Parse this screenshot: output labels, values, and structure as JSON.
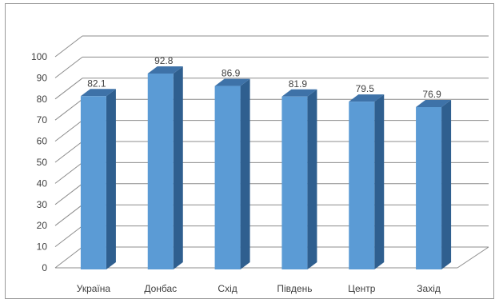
{
  "chart_data": {
    "type": "bar",
    "style": "3d-column",
    "title": "",
    "xlabel": "",
    "ylabel": "",
    "categories": [
      "Україна",
      "Донбас",
      "Схід",
      "Південь",
      "Центр",
      "Захід"
    ],
    "values": [
      82.1,
      92.8,
      86.9,
      81.9,
      79.5,
      76.9
    ],
    "data_labels": [
      "82.1",
      "92.8",
      "86.9",
      "81.9",
      "79.5",
      "76.9"
    ],
    "ylim": [
      0,
      100
    ],
    "yticks": [
      "0",
      "10",
      "20",
      "30",
      "40",
      "50",
      "60",
      "70",
      "80",
      "90",
      "100"
    ],
    "grid": true,
    "legend": "none",
    "colors": {
      "bar_front": "#5b9bd5",
      "bar_side": "#2f5f8f",
      "bar_top": "#3e72a8",
      "grid": "#8c8c8c",
      "text": "#404040"
    }
  }
}
